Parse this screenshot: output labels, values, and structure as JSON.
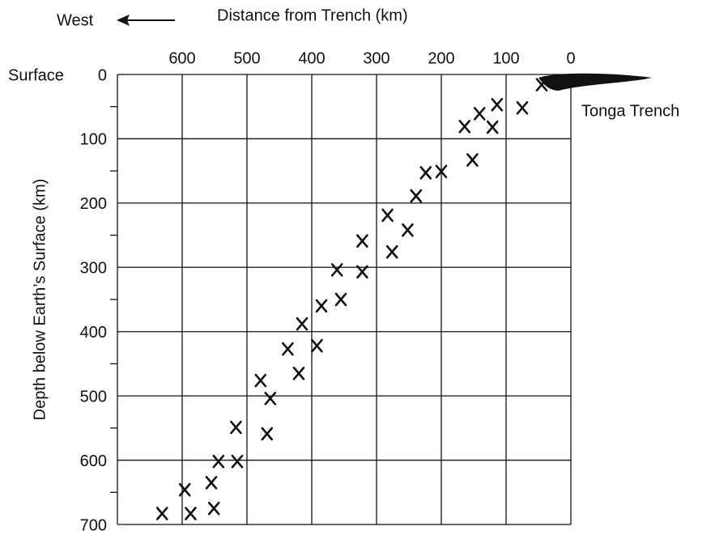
{
  "chart_data": {
    "type": "scatter",
    "title": "Distance from Trench  (km)",
    "direction_label": "West",
    "ylabel": "Depth below Earth’s Surface (km)",
    "annotations": [
      "Surface",
      "Tonga Trench"
    ],
    "xlim": [
      700,
      0
    ],
    "ylim": [
      0,
      700
    ],
    "xticks": [
      600,
      500,
      400,
      300,
      200,
      100,
      0
    ],
    "yticks": [
      0,
      100,
      200,
      300,
      400,
      500,
      600,
      700
    ],
    "y_minor_ticks": [
      50,
      150,
      250,
      350,
      450,
      550,
      650
    ],
    "grid": true,
    "color": "#111111",
    "x": [
      45,
      75,
      114,
      141,
      164,
      121,
      152,
      200,
      224,
      239,
      283,
      252,
      322,
      276,
      361,
      322,
      355,
      385,
      415,
      437,
      392,
      420,
      479,
      464,
      517,
      469,
      544,
      515,
      555,
      596,
      551,
      631,
      587
    ],
    "y": [
      16,
      52,
      47,
      61,
      81,
      82,
      133,
      151,
      153,
      189,
      219,
      242,
      259,
      276,
      304,
      307,
      350,
      360,
      388,
      427,
      422,
      465,
      476,
      504,
      549,
      559,
      602,
      602,
      635,
      646,
      675,
      683,
      683
    ]
  }
}
